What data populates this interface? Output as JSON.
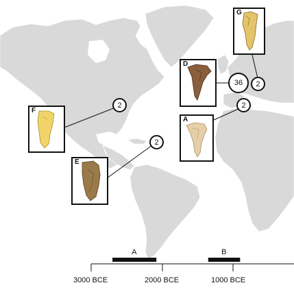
{
  "specimens": [
    {
      "label": "G",
      "count": "2"
    },
    {
      "label": "D",
      "count": "36"
    },
    {
      "label": "A",
      "count": "2"
    },
    {
      "label": "F",
      "count": "2"
    },
    {
      "label": "E",
      "count": "2"
    }
  ],
  "timeline": {
    "ticks": [
      "3000 BCE",
      "2000 BCE",
      "1000 BCE"
    ],
    "periods": [
      {
        "label": "A",
        "start": 2700,
        "end": 2080
      },
      {
        "label": "B",
        "start": 1350,
        "end": 900
      }
    ]
  },
  "colors": {
    "land": "#d9d9d9",
    "ocean": "#ffffff",
    "tooth_A": "#e6cfa8",
    "tooth_D": "#8b5e3c",
    "tooth_E": "#9b7a4a",
    "tooth_F": "#f0d46a",
    "tooth_G": "#e3c468"
  }
}
